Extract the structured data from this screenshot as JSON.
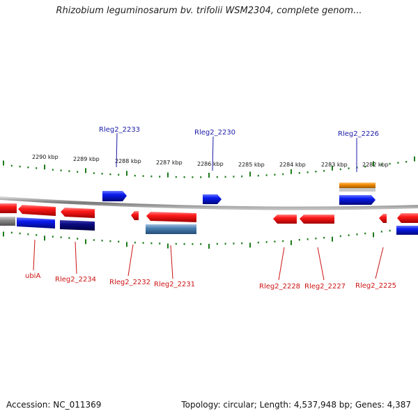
{
  "title": "Rhizobium leguminosarum bv. trifolii WSM2304, complete genom...",
  "footer": {
    "accession": "Accession: NC_011369",
    "summary": "Topology: circular; Length: 4,537,948 bp; Genes: 4,387"
  },
  "scale_labels": [
    "2290 kbp",
    "2289 kbp",
    "2288 kbp",
    "2287 kbp",
    "2286 kbp",
    "2285 kbp",
    "2284 kbp",
    "2283 kbp",
    "2282 kbp"
  ],
  "gene_labels_top": [
    "Rleg2_2233",
    "Rleg2_2230",
    "Rleg2_2226"
  ],
  "gene_labels_bottom": [
    "ubiA",
    "Rleg2_2234",
    "Rleg2_2232",
    "Rleg2_2231",
    "Rleg2_2228",
    "Rleg2_2227",
    "Rleg2_2225"
  ],
  "colors": {
    "backbone": "#8c8c8c",
    "ticks": "#1a7a1a",
    "forward_gene": "#0a1cf0",
    "reverse_gene": "#ee1111",
    "top_label": "#1a1aaa",
    "bottom_label": "#cc1111",
    "orange_feature": "#f08a00",
    "steel_feature": "#4a7fb0",
    "navy_feature": "#0a0a80",
    "gray_feature": "#888888"
  }
}
